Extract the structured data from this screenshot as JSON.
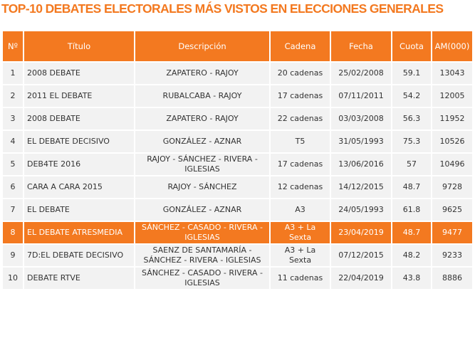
{
  "title": "TOP-10 DEBATES ELECTORALES MÁS VISTOS EN ELECCIONES GENERALES",
  "table": {
    "header": [
      "Nº",
      "Título",
      "Descripción",
      "Cadena",
      "Fecha",
      "Cuota",
      "AM(000)"
    ],
    "rows": [
      [
        "1",
        "2008 DEBATE",
        "ZAPATERO - RAJOY",
        "20 cadenas",
        "25/02/2008",
        "59.1",
        "13043"
      ],
      [
        "2",
        "2011 EL DEBATE",
        "RUBALCABA - RAJOY",
        "17 cadenas",
        "07/11/2011",
        "54.2",
        "12005"
      ],
      [
        "3",
        "2008 DEBATE",
        "ZAPATERO - RAJOY",
        "22 cadenas",
        "03/03/2008",
        "56.3",
        "11952"
      ],
      [
        "4",
        "EL DEBATE DECISIVO",
        "GONZÁLEZ - AZNAR",
        "T5",
        "31/05/1993",
        "75.3",
        "10526"
      ],
      [
        "5",
        "DEB4TE 2016",
        "RAJOY - SÁNCHEZ - RIVERA - IGLESIAS",
        "17 cadenas",
        "13/06/2016",
        "57",
        "10496"
      ],
      [
        "6",
        "CARA A CARA 2015",
        "RAJOY - SÁNCHEZ",
        "12 cadenas",
        "14/12/2015",
        "48.7",
        "9728"
      ],
      [
        "7",
        "EL DEBATE",
        "GONZÁLEZ - AZNAR",
        "A3",
        "24/05/1993",
        "61.8",
        "9625"
      ],
      [
        "8",
        "EL DEBATE ATRESMEDIA",
        "SÁNCHEZ - CASADO - RIVERA - IGLESIAS",
        "A3 + La Sexta",
        "23/04/2019",
        "48.7",
        "9477"
      ],
      [
        "9",
        "7D:EL DEBATE DECISIVO",
        "SAENZ DE SANTAMARÍA - SÁNCHEZ - RIVERA - IGLESIAS",
        "A3 + La Sexta",
        "07/12/2015",
        "48.2",
        "9233"
      ],
      [
        "10",
        "DEBATE RTVE",
        "SÁNCHEZ - CASADO - RIVERA - IGLESIAS",
        "11 cadenas",
        "22/04/2019",
        "43.8",
        "8886"
      ]
    ]
  }
}
